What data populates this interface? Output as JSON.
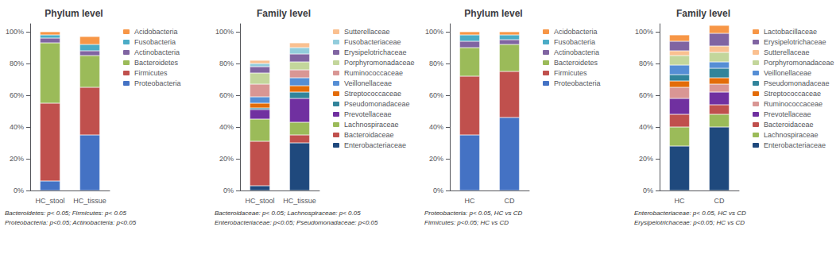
{
  "chart_data": [
    {
      "type": "bar",
      "title": "Phylum level",
      "categories": [
        "HC_stool",
        "HC_tissue"
      ],
      "series": [
        {
          "name": "Proteobacteria",
          "color": "#4472C4",
          "values": [
            0.06,
            0.35
          ]
        },
        {
          "name": "Firmicutes",
          "color": "#C0504D",
          "values": [
            0.49,
            0.3
          ]
        },
        {
          "name": "Bacteroidetes",
          "color": "#9BBB59",
          "values": [
            0.38,
            0.2
          ]
        },
        {
          "name": "Actinobacteria",
          "color": "#8064A2",
          "values": [
            0.03,
            0.03
          ]
        },
        {
          "name": "Fusobacteria",
          "color": "#4BACC6",
          "values": [
            0.02,
            0.04
          ]
        },
        {
          "name": "Acidobacteria",
          "color": "#F79646",
          "values": [
            0.02,
            0.05
          ]
        }
      ],
      "ylim": [
        0,
        1.05
      ],
      "yticks": [
        {
          "value": 0,
          "label": "0%"
        },
        {
          "value": 0.2,
          "label": "20%"
        },
        {
          "value": 0.4,
          "label": "40%"
        },
        {
          "value": 0.6,
          "label": "60%"
        },
        {
          "value": 0.8,
          "label": "80%"
        },
        {
          "value": 1.0,
          "label": "100%"
        }
      ],
      "stacked": true,
      "grid": false,
      "legend": "right",
      "annotations": [
        "Bacteroidetes: p< 0.05; Firmicutes: p< 0.05",
        "Proteobacteria: p<0.05; Actinobacteria: p<0.05"
      ]
    },
    {
      "type": "bar",
      "title": "Family level",
      "categories": [
        "HC_stool",
        "HC_tissue"
      ],
      "series": [
        {
          "name": "Enterobacteriaceae",
          "color": "#1F497D",
          "values": [
            0.03,
            0.3
          ]
        },
        {
          "name": "Bacteroidaceae",
          "color": "#C0504D",
          "values": [
            0.28,
            0.05
          ]
        },
        {
          "name": "Lachnospiraceae",
          "color": "#9BBB59",
          "values": [
            0.14,
            0.08
          ]
        },
        {
          "name": "Prevotellaceae",
          "color": "#7030A0",
          "values": [
            0.06,
            0.15
          ]
        },
        {
          "name": "Pseudomonadaceae",
          "color": "#31849B",
          "values": [
            0.01,
            0.04
          ]
        },
        {
          "name": "Streptococcaceae",
          "color": "#E36C09",
          "values": [
            0.03,
            0.04
          ]
        },
        {
          "name": "Veillonellaceae",
          "color": "#558ED5",
          "values": [
            0.04,
            0.05
          ]
        },
        {
          "name": "Ruminococcaceae",
          "color": "#D99694",
          "values": [
            0.08,
            0.05
          ]
        },
        {
          "name": "Porphyromonadaceae",
          "color": "#C3D69B",
          "values": [
            0.07,
            0.05
          ]
        },
        {
          "name": "Erysipelotrichaceae",
          "color": "#8064A2",
          "values": [
            0.04,
            0.05
          ]
        },
        {
          "name": "Fusobacteriaceae",
          "color": "#92CDDC",
          "values": [
            0.02,
            0.04
          ]
        },
        {
          "name": "Sutterellaceae",
          "color": "#FAC090",
          "values": [
            0.02,
            0.03
          ]
        }
      ],
      "ylim": [
        0,
        1.05
      ],
      "yticks": [
        {
          "value": 0,
          "label": "0%"
        },
        {
          "value": 0.2,
          "label": "20%"
        },
        {
          "value": 0.4,
          "label": "40%"
        },
        {
          "value": 0.6,
          "label": "60%"
        },
        {
          "value": 0.8,
          "label": "80%"
        },
        {
          "value": 1.0,
          "label": "100%"
        }
      ],
      "stacked": true,
      "grid": false,
      "legend": "right",
      "annotations": [
        "Bacteroidaceae: p< 0.05; Lachnospiraceae: p< 0.05",
        "Enterobacteriaceae: p<0.05; Pseudomonadaceae: p<0.05"
      ]
    },
    {
      "type": "bar",
      "title": "Phylum level",
      "categories": [
        "HC",
        "CD"
      ],
      "series": [
        {
          "name": "Proteobacteria",
          "color": "#4472C4",
          "values": [
            0.35,
            0.46
          ]
        },
        {
          "name": "Firmicutes",
          "color": "#C0504D",
          "values": [
            0.37,
            0.29
          ]
        },
        {
          "name": "Bacteroidetes",
          "color": "#9BBB59",
          "values": [
            0.18,
            0.17
          ]
        },
        {
          "name": "Actinobacteria",
          "color": "#8064A2",
          "values": [
            0.04,
            0.03
          ]
        },
        {
          "name": "Fusobacteria",
          "color": "#4BACC6",
          "values": [
            0.04,
            0.03
          ]
        },
        {
          "name": "Acidobacteria",
          "color": "#F79646",
          "values": [
            0.02,
            0.02
          ]
        }
      ],
      "ylim": [
        0,
        1.05
      ],
      "yticks": [
        {
          "value": 0,
          "label": "0%"
        },
        {
          "value": 0.2,
          "label": "20%"
        },
        {
          "value": 0.4,
          "label": "40%"
        },
        {
          "value": 0.6,
          "label": "60%"
        },
        {
          "value": 0.8,
          "label": "80%"
        },
        {
          "value": 1.0,
          "label": "100%"
        }
      ],
      "stacked": true,
      "grid": false,
      "legend": "right",
      "annotations": [
        "Proteobacteria: p< 0.05, HC vs CD",
        "Firmicutes: p<0.05; HC vs CD"
      ]
    },
    {
      "type": "bar",
      "title": "Family level",
      "categories": [
        "HC",
        "CD"
      ],
      "series": [
        {
          "name": "Enterobacteriaceae",
          "color": "#1F497D",
          "values": [
            0.28,
            0.4
          ]
        },
        {
          "name": "Lachnospiraceae",
          "color": "#9BBB59",
          "values": [
            0.12,
            0.08
          ]
        },
        {
          "name": "Bacteroidaceae",
          "color": "#C0504D",
          "values": [
            0.08,
            0.06
          ]
        },
        {
          "name": "Prevotellaceae",
          "color": "#7030A0",
          "values": [
            0.1,
            0.08
          ]
        },
        {
          "name": "Ruminococcaceae",
          "color": "#D99694",
          "values": [
            0.07,
            0.05
          ]
        },
        {
          "name": "Streptococcaceae",
          "color": "#E36C09",
          "values": [
            0.04,
            0.04
          ]
        },
        {
          "name": "Pseudomonadaceae",
          "color": "#31849B",
          "values": [
            0.04,
            0.06
          ]
        },
        {
          "name": "Veillonellaceae",
          "color": "#558ED5",
          "values": [
            0.06,
            0.04
          ]
        },
        {
          "name": "Porphyromonadaceae",
          "color": "#C3D69B",
          "values": [
            0.06,
            0.06
          ]
        },
        {
          "name": "Sutterellaceae",
          "color": "#FAC090",
          "values": [
            0.03,
            0.04
          ]
        },
        {
          "name": "Erysipelotrichaceae",
          "color": "#8064A2",
          "values": [
            0.06,
            0.08
          ]
        },
        {
          "name": "Lactobacillaceae",
          "color": "#F79646",
          "values": [
            0.04,
            0.05
          ]
        }
      ],
      "ylim": [
        0,
        1.05
      ],
      "yticks": [
        {
          "value": 0,
          "label": "0%"
        },
        {
          "value": 0.2,
          "label": "20%"
        },
        {
          "value": 0.4,
          "label": "40%"
        },
        {
          "value": 0.6,
          "label": "60%"
        },
        {
          "value": 0.8,
          "label": "80%"
        },
        {
          "value": 1.0,
          "label": "100%"
        }
      ],
      "stacked": true,
      "grid": false,
      "legend": "right",
      "annotations": [
        "Enterobacteriaceae: p< 0.05, HC vs CD",
        "Erysipelotrichaceae: p<0.05; HC vs CD"
      ]
    }
  ]
}
